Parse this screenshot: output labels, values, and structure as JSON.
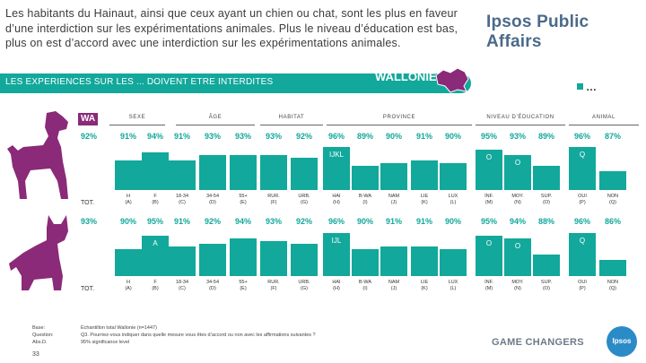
{
  "intro_text": "Les habitants du Hainaut, ainsi que ceux ayant un chien ou chat, sont les plus en faveur d’une interdiction sur les expérimentations animales. Plus le niveau d’éducation est bas, plus on est d’accord avec une interdiction sur les expérimentations animales.",
  "brand": "Ipsos Public Affairs",
  "banner": {
    "title": "LES EXPERIENCES SUR LES ... DOIVENT ETRE INTERDITES",
    "region": "WALLONIE"
  },
  "legend": "…",
  "wa_tag": "WA",
  "groups": [
    "SEXE",
    "ÂGE",
    "HABITAT",
    "PROVINCE",
    "NIVEAU D’ÉDUCATION",
    "ANIMAL"
  ],
  "row_labels": {
    "dog_total": "TOT.",
    "cat_total": "TOT."
  },
  "dog_total_pct": "92%",
  "cat_total_pct": "93%",
  "columns": [
    {
      "label": "H",
      "code": "(A)",
      "dog": "91%",
      "cat": "90%"
    },
    {
      "label": "F",
      "code": "(B)",
      "dog": "94%",
      "cat": "95%"
    },
    {
      "label": "18-34",
      "code": "(C)",
      "dog": "91%",
      "cat": "91%"
    },
    {
      "label": "34-54",
      "code": "(D)",
      "dog": "93%",
      "cat": "92%"
    },
    {
      "label": "55+",
      "code": "(E)",
      "dog": "93%",
      "cat": "94%"
    },
    {
      "label": "RUR.",
      "code": "(F)",
      "dog": "93%",
      "cat": "93%"
    },
    {
      "label": "URB.",
      "code": "(G)",
      "dog": "92%",
      "cat": "92%"
    },
    {
      "label": "HAI",
      "code": "(H)",
      "dog": "96%",
      "cat": "96%"
    },
    {
      "label": "B-WA",
      "code": "(I)",
      "dog": "89%",
      "cat": "90%"
    },
    {
      "label": "NAM",
      "code": "(J)",
      "dog": "90%",
      "cat": "91%"
    },
    {
      "label": "LIE",
      "code": "(K)",
      "dog": "91%",
      "cat": "91%"
    },
    {
      "label": "LUX",
      "code": "(L)",
      "dog": "90%",
      "cat": "90%"
    },
    {
      "label": "INF.",
      "code": "(M)",
      "dog": "95%",
      "cat": "95%"
    },
    {
      "label": "MOY.",
      "code": "(N)",
      "dog": "93%",
      "cat": "94%"
    },
    {
      "label": "SUP.",
      "code": "(O)",
      "dog": "89%",
      "cat": "88%"
    },
    {
      "label": "OUI",
      "code": "(P)",
      "dog": "96%",
      "cat": "96%"
    },
    {
      "label": "NON",
      "code": "(Q)",
      "dog": "87%",
      "cat": "86%"
    }
  ],
  "sig_letters": {
    "dog_h": "IJKL",
    "dog_m": "O",
    "dog_n": "O",
    "dog_p": "Q",
    "cat_b": "A",
    "cat_h": "IJL",
    "cat_m": "O",
    "cat_n": "O",
    "cat_p": "Q"
  },
  "notes_left": [
    "Base:",
    "Question:",
    "Abs.D."
  ],
  "notes_right": [
    "Échantillon total Wallonie (n=1447)",
    "Q3. Pourriez-vous indiquer dans quelle mesure vous êtes d’accord ou non avec les affirmations suivantes ?",
    "95% significance level"
  ],
  "page_number": "33",
  "footer_brand": "GAME CHANGERS",
  "logo_text": "Ipsos",
  "colors": {
    "accent": "#12a89b",
    "animal": "#8a2a78"
  }
}
